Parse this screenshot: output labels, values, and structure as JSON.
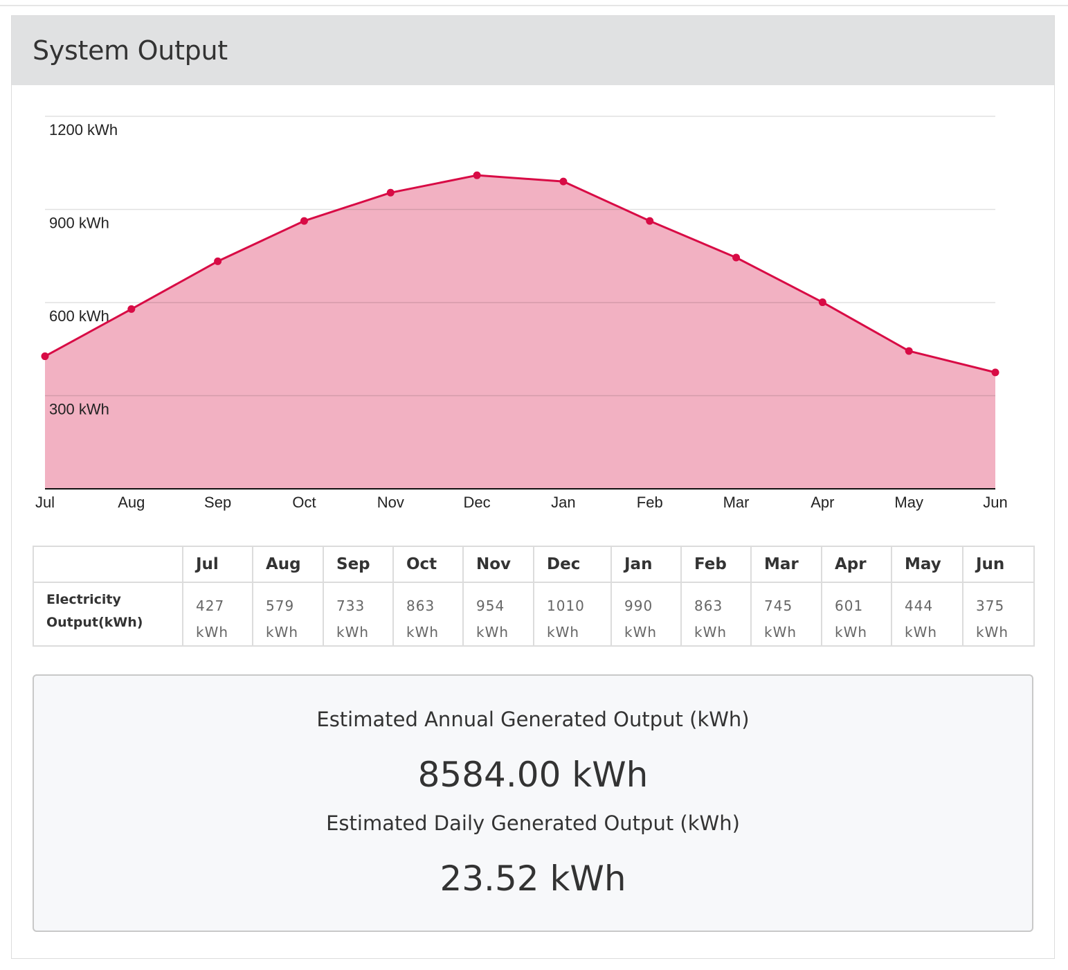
{
  "panel": {
    "title": "System Output"
  },
  "chart_data": {
    "type": "area",
    "categories": [
      "Jul",
      "Aug",
      "Sep",
      "Oct",
      "Nov",
      "Dec",
      "Jan",
      "Feb",
      "Mar",
      "Apr",
      "May",
      "Jun"
    ],
    "values": [
      427,
      579,
      733,
      863,
      954,
      1010,
      990,
      863,
      745,
      601,
      444,
      375
    ],
    "y_ticks": [
      300,
      600,
      900,
      1200
    ],
    "y_tick_labels": [
      "300 kWh",
      "600 kWh",
      "900 kWh",
      "1200 kWh"
    ],
    "ylim": [
      0,
      1200
    ],
    "grid": true,
    "colors": {
      "line": "#d80b45",
      "fill": "#f2b1c2",
      "point": "#d80b45"
    }
  },
  "table": {
    "corner": "",
    "headers": [
      "Jul",
      "Aug",
      "Sep",
      "Oct",
      "Nov",
      "Dec",
      "Jan",
      "Feb",
      "Mar",
      "Apr",
      "May",
      "Jun"
    ],
    "row_label": "Electricity Output(kWh)",
    "cells": [
      "427 kWh",
      "579 kWh",
      "733 kWh",
      "863 kWh",
      "954 kWh",
      "1010 kWh",
      "990 kWh",
      "863 kWh",
      "745 kWh",
      "601 kWh",
      "444 kWh",
      "375 kWh"
    ]
  },
  "summary": {
    "annual_label": "Estimated Annual Generated Output (kWh)",
    "annual_value": "8584.00 kWh",
    "daily_label": "Estimated Daily Generated Output (kWh)",
    "daily_value": "23.52 kWh"
  }
}
